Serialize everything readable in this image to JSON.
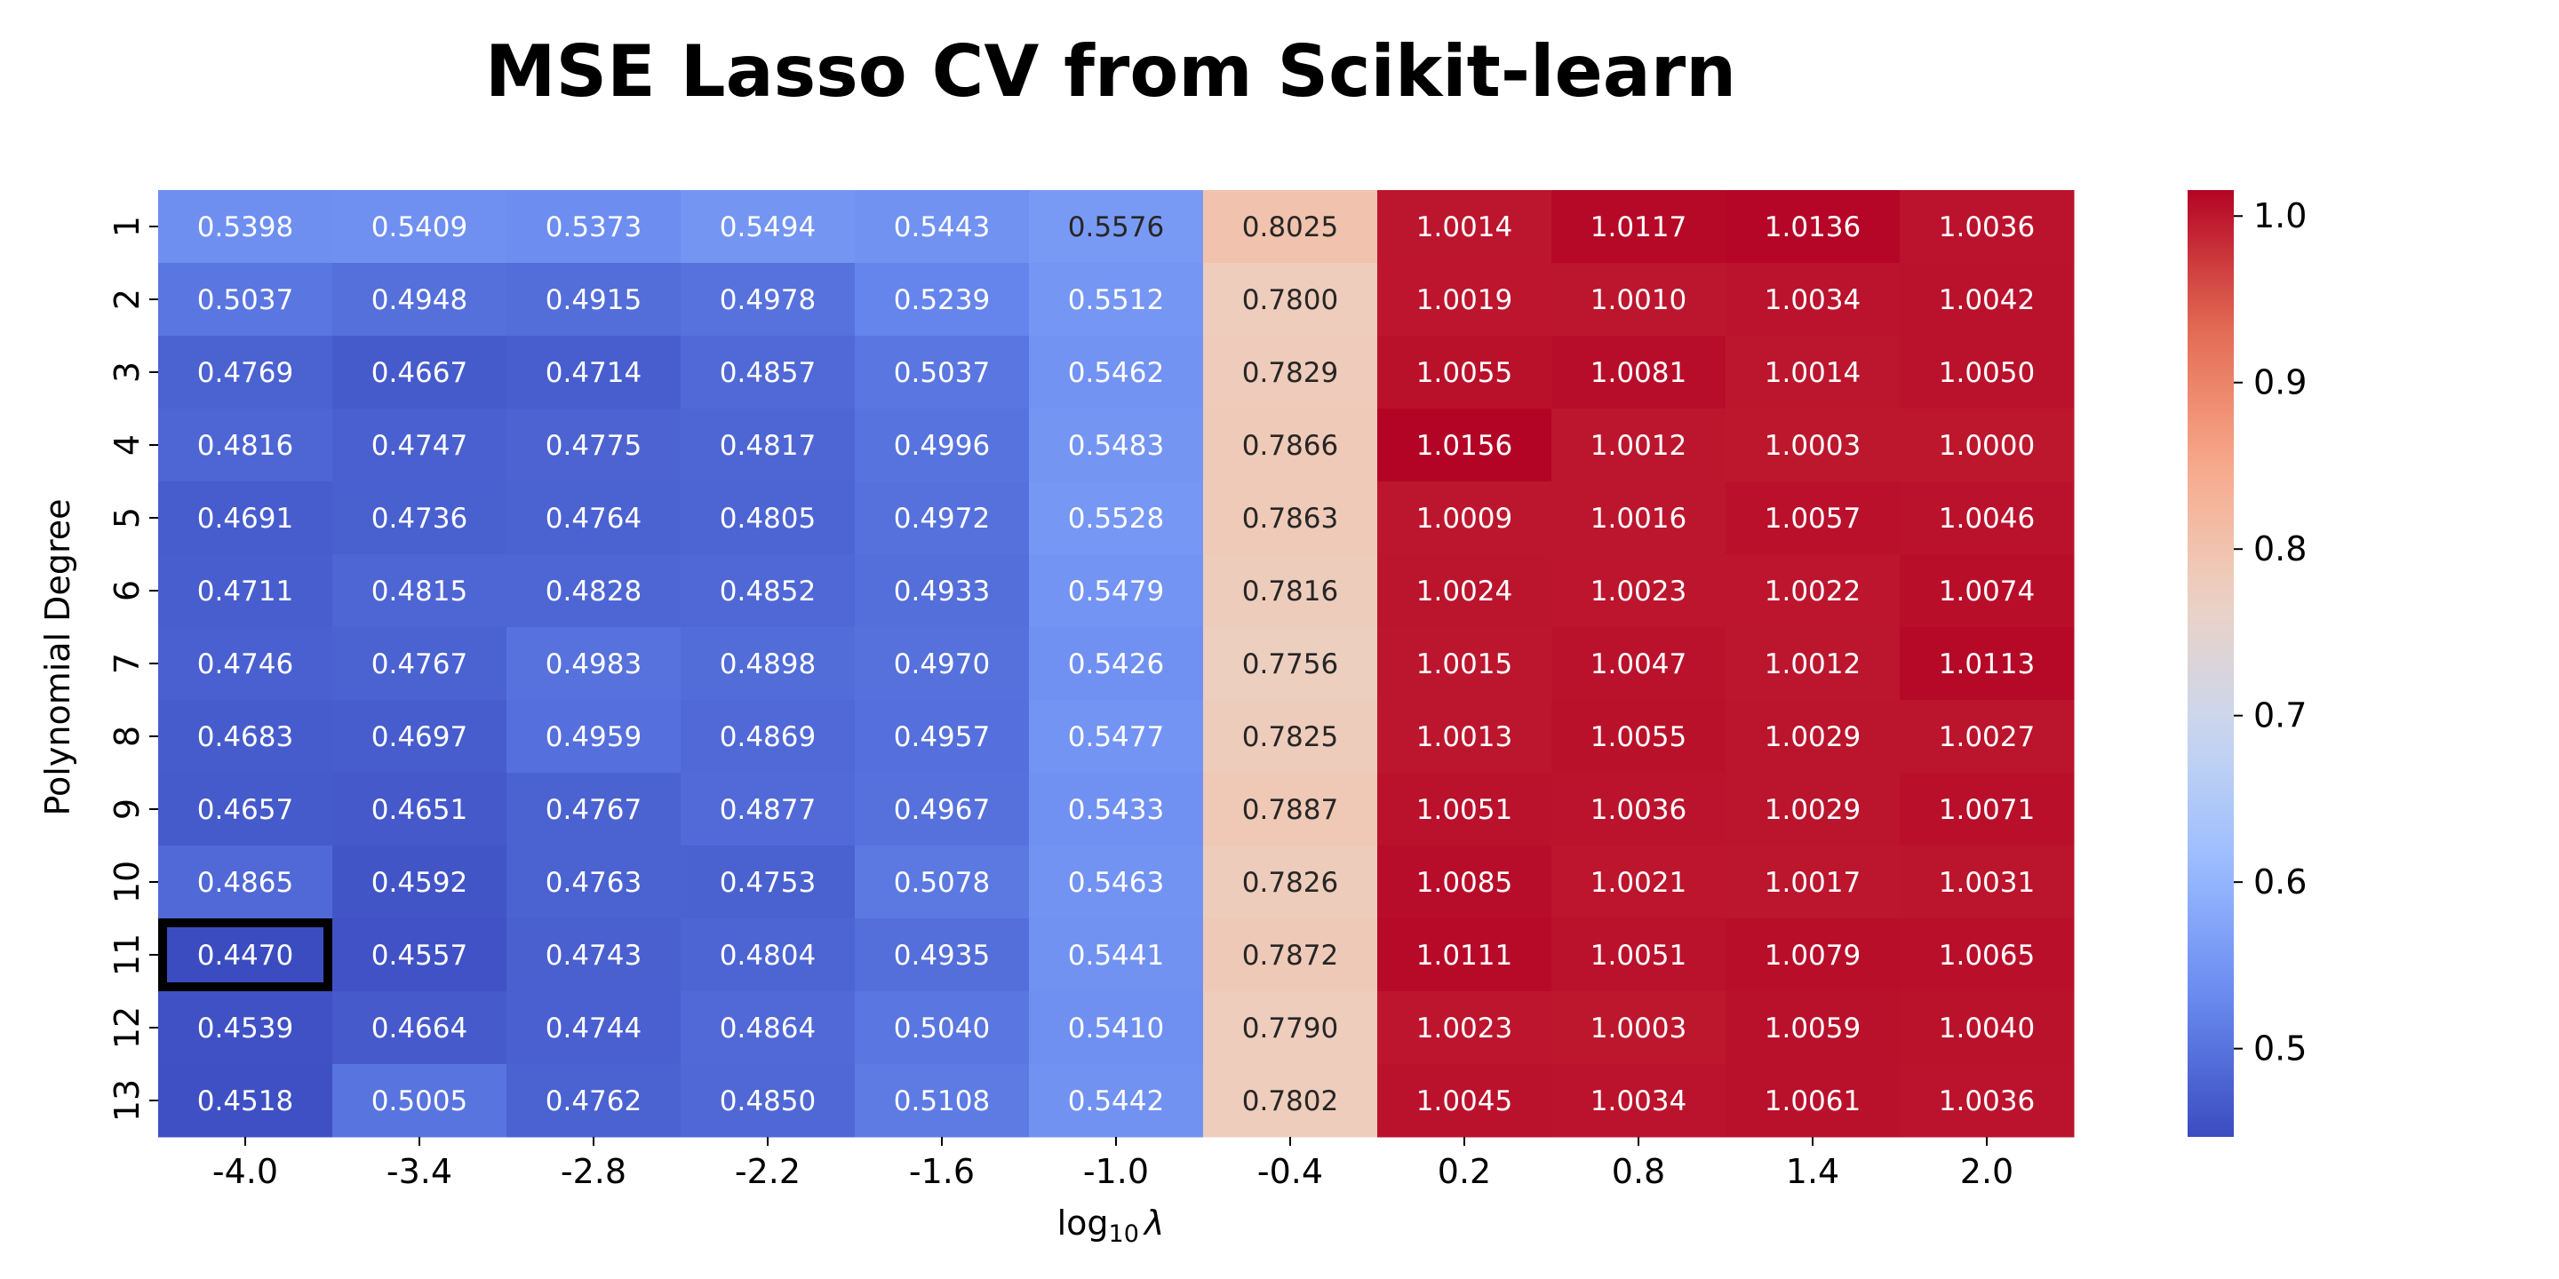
{
  "chart_data": {
    "type": "heatmap",
    "title": "MSE Lasso CV from Scikit-learn",
    "xlabel": "log",
    "xlabel_sub": "10",
    "xlabel_symbol": "λ",
    "ylabel": "Polynomial Degree",
    "x_categories": [
      "-4.0",
      "-3.4",
      "-2.8",
      "-2.2",
      "-1.6",
      "-1.0",
      "-0.4",
      "0.2",
      "0.8",
      "1.4",
      "2.0"
    ],
    "y_categories": [
      "1",
      "2",
      "3",
      "4",
      "5",
      "6",
      "7",
      "8",
      "9",
      "10",
      "11",
      "12",
      "13"
    ],
    "values": [
      [
        0.5398,
        0.5409,
        0.5373,
        0.5494,
        0.5443,
        0.5576,
        0.8025,
        1.0014,
        1.0117,
        1.0136,
        1.0036
      ],
      [
        0.5037,
        0.4948,
        0.4915,
        0.4978,
        0.5239,
        0.5512,
        0.78,
        1.0019,
        1.001,
        1.0034,
        1.0042
      ],
      [
        0.4769,
        0.4667,
        0.4714,
        0.4857,
        0.5037,
        0.5462,
        0.7829,
        1.0055,
        1.0081,
        1.0014,
        1.005
      ],
      [
        0.4816,
        0.4747,
        0.4775,
        0.4817,
        0.4996,
        0.5483,
        0.7866,
        1.0156,
        1.0012,
        1.0003,
        1.0
      ],
      [
        0.4691,
        0.4736,
        0.4764,
        0.4805,
        0.4972,
        0.5528,
        0.7863,
        1.0009,
        1.0016,
        1.0057,
        1.0046
      ],
      [
        0.4711,
        0.4815,
        0.4828,
        0.4852,
        0.4933,
        0.5479,
        0.7816,
        1.0024,
        1.0023,
        1.0022,
        1.0074
      ],
      [
        0.4746,
        0.4767,
        0.4983,
        0.4898,
        0.497,
        0.5426,
        0.7756,
        1.0015,
        1.0047,
        1.0012,
        1.0113
      ],
      [
        0.4683,
        0.4697,
        0.4959,
        0.4869,
        0.4957,
        0.5477,
        0.7825,
        1.0013,
        1.0055,
        1.0029,
        1.0027
      ],
      [
        0.4657,
        0.4651,
        0.4767,
        0.4877,
        0.4967,
        0.5433,
        0.7887,
        1.0051,
        1.0036,
        1.0029,
        1.0071
      ],
      [
        0.4865,
        0.4592,
        0.4763,
        0.4753,
        0.5078,
        0.5463,
        0.7826,
        1.0085,
        1.0021,
        1.0017,
        1.0031
      ],
      [
        0.447,
        0.4557,
        0.4743,
        0.4804,
        0.4935,
        0.5441,
        0.7872,
        1.0111,
        1.0051,
        1.0079,
        1.0065
      ],
      [
        0.4539,
        0.4664,
        0.4744,
        0.4864,
        0.504,
        0.541,
        0.779,
        1.0023,
        1.0003,
        1.0059,
        1.004
      ],
      [
        0.4518,
        0.5005,
        0.4762,
        0.485,
        0.5108,
        0.5442,
        0.7802,
        1.0045,
        1.0034,
        1.0061,
        1.0036
      ]
    ],
    "highlight_cell": {
      "row": 10,
      "col": 0
    },
    "colormap": "coolwarm",
    "value_range": [
      0.447,
      1.0156
    ],
    "colorbar_ticks": [
      0.5,
      0.6,
      0.7,
      0.8,
      0.9,
      1.0
    ],
    "colorbar_tick_labels": [
      "0.5",
      "0.6",
      "0.7",
      "0.8",
      "0.9",
      "1.0"
    ],
    "label_format_decimals": 4,
    "grid": false,
    "colors": {
      "coolwarm_stops": [
        "#3b4cc0",
        "#6788ee",
        "#9abbff",
        "#c9d7f0",
        "#edd1c2",
        "#f7a889",
        "#e26952",
        "#b40426"
      ],
      "highlight_border": "#000000",
      "dark_text": "#262626",
      "light_text": "#ffffff"
    }
  }
}
